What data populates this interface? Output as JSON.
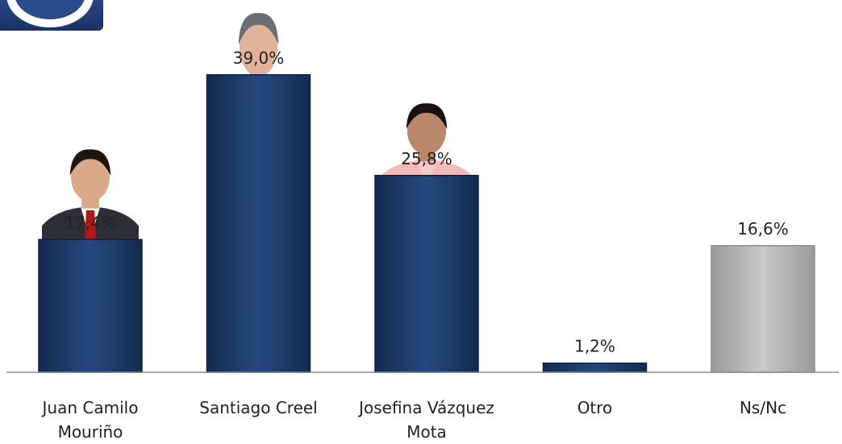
{
  "chart_data": {
    "type": "bar",
    "categories": [
      "Juan Camilo Mouriño",
      "Santiago Creel",
      "Josefina Vázquez Mota",
      "Otro",
      "Ns/Nc"
    ],
    "category_lines": [
      [
        "Juan Camilo",
        "Mouriño"
      ],
      [
        "Santiago Creel"
      ],
      [
        "Josefina Vázquez",
        "Mota"
      ],
      [
        "Otro"
      ],
      [
        "Ns/Nc"
      ]
    ],
    "values": [
      17.4,
      39.0,
      25.8,
      1.2,
      16.6
    ],
    "value_labels": [
      "17,4%",
      "39,0%",
      "25,8%",
      "1,2%",
      "16,6%"
    ],
    "bar_colors": [
      "#1f3d6b",
      "#1f3d6b",
      "#1f3d6b",
      "#1f3d6b",
      "#b8b8b8"
    ],
    "ylim": [
      0,
      45
    ],
    "grid": false,
    "legend": "none",
    "photos": [
      {
        "category": "Juan Camilo Mouriño",
        "icon": "person-photo-icon"
      },
      {
        "category": "Santiago Creel",
        "icon": "person-photo-icon"
      },
      {
        "category": "Josefina Vázquez Mota",
        "icon": "person-photo-icon"
      }
    ],
    "logo": "party-logo-icon"
  }
}
